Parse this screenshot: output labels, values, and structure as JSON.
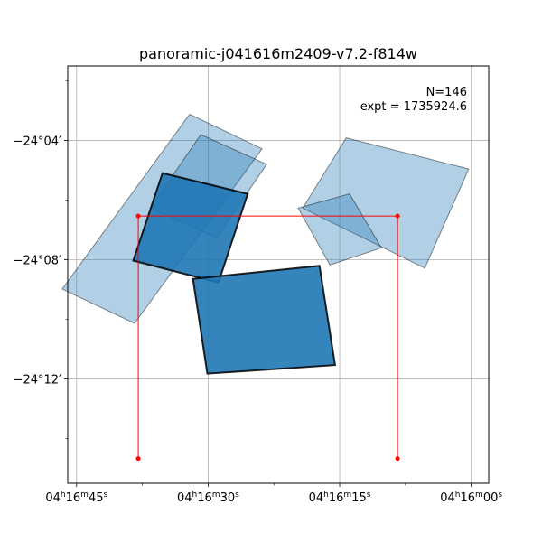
{
  "chart_data": {
    "type": "footprint",
    "title": "panoramic-j041616m2409-v7.2-f814w",
    "annotations": [
      "N=146",
      "expt = 1735924.6"
    ],
    "ra_range_deg": [
      64.1917,
      63.9917
    ],
    "dec_range_deg": [
      -24.2583,
      -24.025
    ],
    "grid": true,
    "x_ticks": [
      {
        "ra": 64.1875,
        "label": "04h16m45s"
      },
      {
        "ra": 64.125,
        "label": "04h16m30s"
      },
      {
        "ra": 64.0625,
        "label": "04h16m15s"
      },
      {
        "ra": 64.0,
        "label": "04h16m00s"
      }
    ],
    "y_ticks": [
      {
        "dec": -24.0667,
        "label": "−24°04′"
      },
      {
        "dec": -24.1333,
        "label": "−24°08′"
      },
      {
        "dec": -24.2,
        "label": "−24°12′"
      }
    ],
    "colors": {
      "footprint_fill": "#1f77b4",
      "footprint_edge": "#000000",
      "box": "#ff0000"
    },
    "highlight_box": {
      "corners": [
        {
          "ra": 64.1582,
          "dec": -24.1089
        },
        {
          "ra": 64.035,
          "dec": -24.1089
        },
        {
          "ra": 64.035,
          "dec": -24.2445
        },
        {
          "ra": 64.1582,
          "dec": -24.2445
        }
      ]
    },
    "footprints": [
      {
        "opacity": 0.35,
        "corners": [
          {
            "ra": 64.1338,
            "dec": -24.052
          },
          {
            "ra": 64.0994,
            "dec": -24.0713
          },
          {
            "ra": 64.16,
            "dec": -24.1689
          },
          {
            "ra": 64.1943,
            "dec": -24.1497
          }
        ]
      },
      {
        "opacity": 0.35,
        "corners": [
          {
            "ra": 64.1285,
            "dec": -24.0634
          },
          {
            "ra": 64.0972,
            "dec": -24.08
          },
          {
            "ra": 64.121,
            "dec": -24.121
          },
          {
            "ra": 64.1525,
            "dec": -24.1045
          }
        ]
      },
      {
        "opacity": 0.35,
        "corners": [
          {
            "ra": 64.0594,
            "dec": -24.0652
          },
          {
            "ra": 64.0012,
            "dec": -24.0826
          },
          {
            "ra": 64.0221,
            "dec": -24.138
          },
          {
            "ra": 64.0801,
            "dec": -24.1045
          }
        ]
      },
      {
        "opacity": 0.35,
        "corners": [
          {
            "ra": 64.0822,
            "dec": -24.1045
          },
          {
            "ra": 64.0578,
            "dec": -24.0965
          },
          {
            "ra": 64.0427,
            "dec": -24.1267
          },
          {
            "ra": 64.0671,
            "dec": -24.1363
          }
        ]
      },
      {
        "opacity": 0.9,
        "corners": [
          {
            "ra": 64.1467,
            "dec": -24.0849
          },
          {
            "ra": 64.1062,
            "dec": -24.0965
          },
          {
            "ra": 64.1201,
            "dec": -24.1461
          },
          {
            "ra": 64.1606,
            "dec": -24.1338
          }
        ]
      },
      {
        "opacity": 0.9,
        "corners": [
          {
            "ra": 64.1322,
            "dec": -24.144
          },
          {
            "ra": 64.0721,
            "dec": -24.1367
          },
          {
            "ra": 64.0647,
            "dec": -24.1922
          },
          {
            "ra": 64.1254,
            "dec": -24.197
          }
        ]
      }
    ]
  }
}
